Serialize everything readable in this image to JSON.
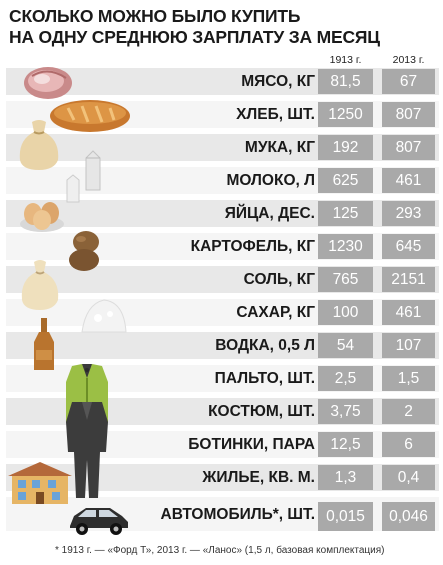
{
  "title_line1": "СКОЛЬКО МОЖНО БЫЛО КУПИТЬ",
  "title_line2": "НА ОДНУ СРЕДНЮЮ ЗАРПЛАТУ ЗА МЕСЯЦ",
  "col_1913": "1913 г.",
  "col_2013": "2013 г.",
  "rows": [
    {
      "label": "МЯСО, КГ",
      "v1913": "81,5",
      "v2013": "67"
    },
    {
      "label": "ХЛЕБ, ШТ.",
      "v1913": "1250",
      "v2013": "807"
    },
    {
      "label": "МУКА, КГ",
      "v1913": "192",
      "v2013": "807"
    },
    {
      "label": "МОЛОКО, Л",
      "v1913": "625",
      "v2013": "461"
    },
    {
      "label": "ЯЙЦА, ДЕС.",
      "v1913": "125",
      "v2013": "293"
    },
    {
      "label": "КАРТОФЕЛЬ, КГ",
      "v1913": "1230",
      "v2013": "645"
    },
    {
      "label": "СОЛЬ, КГ",
      "v1913": "765",
      "v2013": "2151"
    },
    {
      "label": "САХАР, КГ",
      "v1913": "100",
      "v2013": "461"
    },
    {
      "label": "ВОДКА, 0,5 Л",
      "v1913": "54",
      "v2013": "107"
    },
    {
      "label": "ПАЛЬТО, ШТ.",
      "v1913": "2,5",
      "v2013": "1,5"
    },
    {
      "label": "КОСТЮМ, ШТ.",
      "v1913": "3,75",
      "v2013": "2"
    },
    {
      "label": "БОТИНКИ, ПАРА",
      "v1913": "12,5",
      "v2013": "6"
    },
    {
      "label": "ЖИЛЬЕ, КВ. М.",
      "v1913": "1,3",
      "v2013": "0,4"
    },
    {
      "label": "АВТОМОБИЛЬ*, ШТ.",
      "v1913": "0,015",
      "v2013": "0,046"
    }
  ],
  "footnote": "* 1913 г. — «Форд Т», 2013 г. — «Ланос» (1,5 л, базовая комплектация)",
  "colors": {
    "cell": "#a9a9a9",
    "band_dark": "#e8e8e8",
    "band_light": "#f5f5f5"
  }
}
